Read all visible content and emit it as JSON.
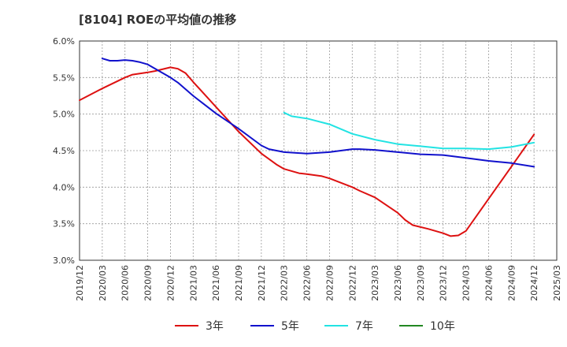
{
  "title": "[8104]  ROEの平均値の推移",
  "chart_data": {
    "type": "line",
    "title": "[8104]  ROEの平均値の推移",
    "x_ticks": [
      "2019/12",
      "2020/03",
      "2020/06",
      "2020/09",
      "2020/12",
      "2021/03",
      "2021/06",
      "2021/09",
      "2021/12",
      "2022/03",
      "2022/06",
      "2022/09",
      "2022/12",
      "2023/03",
      "2023/06",
      "2023/09",
      "2023/12",
      "2024/03",
      "2024/06",
      "2024/09",
      "2024/12",
      "2025/03"
    ],
    "y_ticks": [
      "3.0%",
      "3.5%",
      "4.0%",
      "4.5%",
      "5.0%",
      "5.5%",
      "6.0%"
    ],
    "ylim": [
      3.0,
      6.0
    ],
    "y_unit": "%",
    "grid": true,
    "legend_position": "bottom",
    "series": [
      {
        "name": "3年",
        "color": "#dd1111",
        "x": [
          "2019/12",
          "2020/03",
          "2020/06",
          "2020/07",
          "2020/09",
          "2020/10",
          "2020/12",
          "2021/01",
          "2021/02",
          "2021/03",
          "2021/06",
          "2021/09",
          "2021/12",
          "2022/02",
          "2022/03",
          "2022/05",
          "2022/06",
          "2022/08",
          "2022/09",
          "2022/12",
          "2023/01",
          "2023/03",
          "2023/06",
          "2023/07",
          "2023/08",
          "2023/10",
          "2023/12",
          "2024/01",
          "2024/02",
          "2024/03",
          "2024/06",
          "2024/09",
          "2024/12"
        ],
        "values": [
          5.19,
          5.35,
          5.5,
          5.54,
          5.57,
          5.59,
          5.64,
          5.62,
          5.56,
          5.44,
          5.1,
          4.76,
          4.46,
          4.31,
          4.25,
          4.19,
          4.18,
          4.15,
          4.12,
          4.0,
          3.95,
          3.86,
          3.65,
          3.55,
          3.48,
          3.43,
          3.37,
          3.33,
          3.34,
          3.4,
          3.84,
          4.28,
          4.72
        ]
      },
      {
        "name": "5年",
        "color": "#1111cc",
        "x": [
          "2020/03",
          "2020/04",
          "2020/05",
          "2020/06",
          "2020/07",
          "2020/08",
          "2020/09",
          "2020/12",
          "2021/01",
          "2021/03",
          "2021/06",
          "2021/09",
          "2021/12",
          "2022/01",
          "2022/03",
          "2022/06",
          "2022/09",
          "2022/12",
          "2023/01",
          "2023/03",
          "2023/06",
          "2023/09",
          "2023/12",
          "2024/03",
          "2024/06",
          "2024/09",
          "2024/12"
        ],
        "values": [
          5.76,
          5.73,
          5.73,
          5.74,
          5.73,
          5.71,
          5.68,
          5.5,
          5.43,
          5.25,
          5.01,
          4.8,
          4.57,
          4.52,
          4.48,
          4.46,
          4.48,
          4.52,
          4.52,
          4.51,
          4.48,
          4.45,
          4.44,
          4.4,
          4.36,
          4.33,
          4.28
        ]
      },
      {
        "name": "7年",
        "color": "#22e3e3",
        "x": [
          "2022/03",
          "2022/04",
          "2022/06",
          "2022/09",
          "2022/12",
          "2023/03",
          "2023/06",
          "2023/09",
          "2023/12",
          "2024/03",
          "2024/06",
          "2024/09",
          "2024/12"
        ],
        "values": [
          5.02,
          4.97,
          4.94,
          4.86,
          4.73,
          4.65,
          4.59,
          4.56,
          4.53,
          4.53,
          4.52,
          4.55,
          4.61
        ]
      },
      {
        "name": "10年",
        "color": "#228822",
        "x": [],
        "values": []
      }
    ]
  }
}
